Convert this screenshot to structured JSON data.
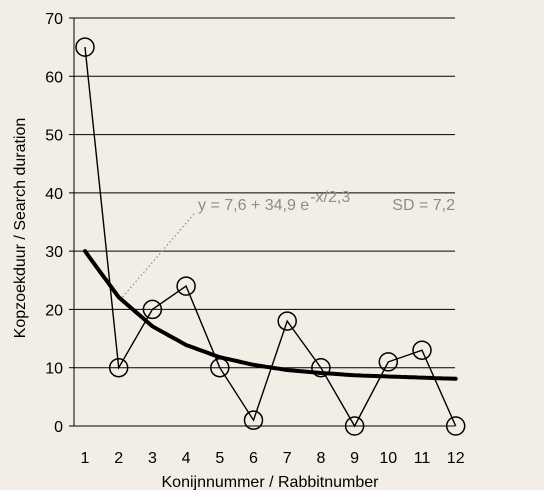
{
  "chart_data": {
    "type": "line",
    "title": "",
    "xlabel": "Konijnnummer / Rabbitnumber",
    "ylabel": "Kopzoekduur / Search duration",
    "x": [
      1,
      2,
      3,
      4,
      5,
      6,
      7,
      8,
      9,
      10,
      11,
      12
    ],
    "xticks": [
      "1",
      "2",
      "3",
      "4",
      "5",
      "6",
      "7",
      "8",
      "9",
      "10",
      "11",
      "12"
    ],
    "yticks": [
      "0",
      "10",
      "20",
      "30",
      "40",
      "50",
      "60",
      "70"
    ],
    "ylim": [
      0,
      70
    ],
    "grid": "horizontal",
    "series": [
      {
        "name": "",
        "style": "line-with-open-circles",
        "color": "#000000",
        "values": [
          65,
          10,
          20,
          24,
          10,
          1,
          18,
          10,
          0,
          11,
          13,
          0
        ]
      },
      {
        "name": "",
        "style": "thick-fit-curve",
        "color": "#000000",
        "values": [
          30,
          22.1,
          17.1,
          13.9,
          11.8,
          10.5,
          9.6,
          9.1,
          8.7,
          8.5,
          8.3,
          8.1
        ]
      }
    ],
    "annotations": {
      "formula_prefix": "y = 7,6 + 34,9 e",
      "formula_exponent": "-x/2,3",
      "sd": "SD = 7,2",
      "text_color": "#8c8c8c",
      "pointer_x": 2
    }
  }
}
